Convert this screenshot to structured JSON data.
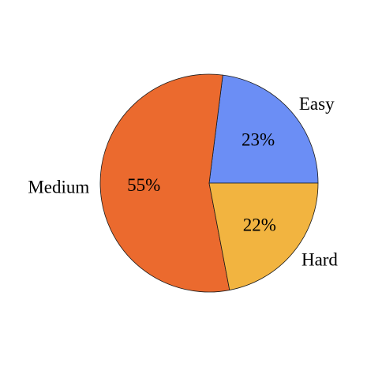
{
  "chart_data": {
    "type": "pie",
    "title": "",
    "slices": [
      {
        "label": "Easy",
        "value": 23,
        "display": "23%",
        "color": "#6b8ef5"
      },
      {
        "label": "Hard",
        "value": 22,
        "display": "22%",
        "color": "#f2b440"
      },
      {
        "label": "Medium",
        "value": 55,
        "display": "55%",
        "color": "#eb6a2e"
      }
    ],
    "start_angle_deg": 0,
    "direction": "counterclockwise",
    "legend": "none"
  }
}
